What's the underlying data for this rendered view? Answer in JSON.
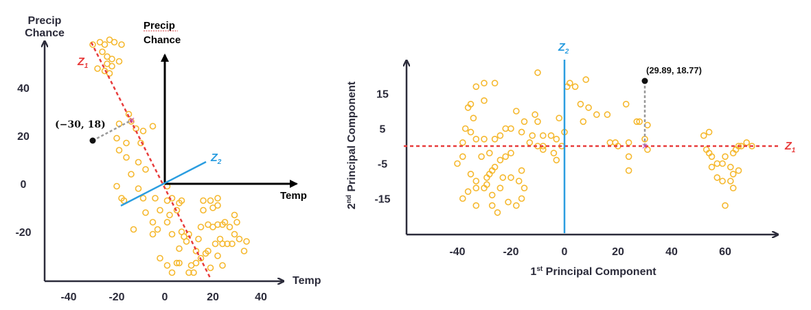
{
  "chart_data": [
    {
      "type": "scatter",
      "xlabel": "Temp",
      "ylabel": "Precip Chance",
      "xlim": [
        -50,
        48
      ],
      "ylim": [
        -40,
        62
      ],
      "xticks": [
        -40,
        -20,
        0,
        20,
        40
      ],
      "yticks": [
        40,
        20,
        0,
        -20
      ],
      "colors": {
        "points": "#f5b82e",
        "z1": "#e83c3c",
        "z2": "#2a9de0",
        "axes": "#2b2b3a"
      },
      "z1_label": "Z1",
      "z2_label": "Z2",
      "centered_axes": {
        "ylabel": "Precip Chance",
        "xlabel": "Temp"
      },
      "highlight_point": {
        "x": -30,
        "y": 18,
        "label": "(−30, 18)"
      },
      "points": [
        [
          -30,
          58
        ],
        [
          -27,
          59
        ],
        [
          -25,
          58
        ],
        [
          -23,
          60
        ],
        [
          -21,
          59
        ],
        [
          -18,
          58
        ],
        [
          -26,
          55
        ],
        [
          -24,
          53
        ],
        [
          -22,
          52
        ],
        [
          -19,
          51
        ],
        [
          -28,
          48
        ],
        [
          -25,
          47
        ],
        [
          -23,
          46
        ],
        [
          -24,
          50
        ],
        [
          -22,
          49
        ],
        [
          -15,
          29
        ],
        [
          -14,
          26
        ],
        [
          -12,
          23
        ],
        [
          -9,
          22
        ],
        [
          -19,
          25
        ],
        [
          -20,
          19
        ],
        [
          -16,
          17
        ],
        [
          -10,
          17
        ],
        [
          -5,
          24
        ],
        [
          -19,
          14
        ],
        [
          -16,
          11
        ],
        [
          -11,
          9
        ],
        [
          -8,
          6
        ],
        [
          -14,
          4
        ],
        [
          -20,
          -1
        ],
        [
          -11,
          -2
        ],
        [
          -18,
          -6
        ],
        [
          -17,
          -7
        ],
        [
          -9,
          -6
        ],
        [
          -13,
          -19
        ],
        [
          -4,
          -6
        ],
        [
          -8,
          -12
        ],
        [
          -2,
          -11
        ],
        [
          -5,
          -16
        ],
        [
          -5,
          -21
        ],
        [
          -3,
          -19
        ],
        [
          1,
          -1
        ],
        [
          3,
          -6
        ],
        [
          1,
          -7
        ],
        [
          7,
          -7
        ],
        [
          6,
          -8
        ],
        [
          5,
          -11
        ],
        [
          2,
          -13
        ],
        [
          1,
          -16
        ],
        [
          3,
          -21
        ],
        [
          7,
          -20
        ],
        [
          10,
          -21
        ],
        [
          9,
          -24
        ],
        [
          8,
          -22
        ],
        [
          6,
          -27
        ],
        [
          14,
          -23
        ],
        [
          13,
          -28
        ],
        [
          11,
          -34
        ],
        [
          17,
          -29
        ],
        [
          18,
          -28
        ],
        [
          22,
          -30
        ],
        [
          19,
          -35
        ],
        [
          24,
          -34
        ],
        [
          16,
          -11
        ],
        [
          20,
          -10
        ],
        [
          22,
          -9
        ],
        [
          16,
          -7
        ],
        [
          19,
          -7
        ],
        [
          22,
          -6
        ],
        [
          15,
          -18
        ],
        [
          18,
          -17
        ],
        [
          22,
          -17
        ],
        [
          20,
          -18
        ],
        [
          24,
          -17
        ],
        [
          25,
          -16
        ],
        [
          27,
          -18
        ],
        [
          29,
          -13
        ],
        [
          30,
          -16
        ],
        [
          29,
          -21
        ],
        [
          31,
          -23
        ],
        [
          23,
          -23
        ],
        [
          24,
          -25
        ],
        [
          21,
          -25
        ],
        [
          26,
          -25
        ],
        [
          28,
          -25
        ],
        [
          33,
          -28
        ],
        [
          34,
          -24
        ],
        [
          -2,
          -31
        ],
        [
          1,
          -34
        ],
        [
          5,
          -33
        ],
        [
          6,
          -33
        ],
        [
          3,
          -37
        ],
        [
          10,
          -37
        ],
        [
          13,
          -33
        ],
        [
          15,
          -31
        ],
        [
          12,
          -37
        ]
      ]
    },
    {
      "type": "scatter",
      "xlabel": "1st Principal Component",
      "ylabel": "2nd Principal Component",
      "xlim": [
        -58,
        80
      ],
      "ylim": [
        -27,
        30
      ],
      "xticks": [
        -40,
        -20,
        0,
        20,
        40,
        60
      ],
      "yticks": [
        15,
        5,
        -5,
        -15
      ],
      "z1_label": "Z1",
      "z2_label": "Z2",
      "highlight_point": {
        "x": 29.89,
        "y": 18.77,
        "label": "(29.89, 18.77)"
      },
      "points": [
        [
          -33,
          17
        ],
        [
          -30,
          18
        ],
        [
          -26,
          18
        ],
        [
          -35,
          12
        ],
        [
          -36,
          11
        ],
        [
          -30,
          13
        ],
        [
          -34,
          8
        ],
        [
          -37,
          5
        ],
        [
          -35,
          4
        ],
        [
          -33,
          2
        ],
        [
          -30,
          2
        ],
        [
          -31,
          -3
        ],
        [
          -28,
          -2
        ],
        [
          -26,
          2
        ],
        [
          -22,
          5
        ],
        [
          -20,
          5
        ],
        [
          -24,
          3
        ],
        [
          -18,
          10
        ],
        [
          -15,
          7
        ],
        [
          -11,
          9
        ],
        [
          -10,
          7
        ],
        [
          -8,
          3
        ],
        [
          -12,
          3
        ],
        [
          -16,
          4
        ],
        [
          -20,
          -2
        ],
        [
          -22,
          -3
        ],
        [
          -24,
          -4
        ],
        [
          -26,
          -6
        ],
        [
          -27,
          -7
        ],
        [
          -28,
          -8
        ],
        [
          -29,
          -9
        ],
        [
          -29,
          -11
        ],
        [
          -30,
          -12
        ],
        [
          -33,
          -12
        ],
        [
          -36,
          -13
        ],
        [
          -40,
          -5
        ],
        [
          -38,
          1
        ],
        [
          -38,
          -3
        ],
        [
          -35,
          -8
        ],
        [
          -33,
          -10
        ],
        [
          -38,
          -15
        ],
        [
          -33,
          -17
        ],
        [
          -27,
          -17
        ],
        [
          -25,
          -19
        ],
        [
          -27,
          -14
        ],
        [
          -24,
          -12
        ],
        [
          -23,
          -9
        ],
        [
          -20,
          -9
        ],
        [
          -17,
          -10
        ],
        [
          -16,
          -15
        ],
        [
          -18,
          -17
        ],
        [
          -21,
          -16
        ],
        [
          -15,
          -12
        ],
        [
          -16,
          -7
        ],
        [
          -13,
          1
        ],
        [
          -10,
          0
        ],
        [
          -8,
          0
        ],
        [
          -8,
          -1
        ],
        [
          -4,
          -2
        ],
        [
          -3,
          -4
        ],
        [
          -1,
          0
        ],
        [
          -3,
          2
        ],
        [
          -5,
          3
        ],
        [
          -2,
          8
        ],
        [
          0,
          4
        ],
        [
          -10,
          21
        ],
        [
          1,
          17
        ],
        [
          2,
          18
        ],
        [
          4,
          17
        ],
        [
          6,
          12
        ],
        [
          8,
          19
        ],
        [
          9,
          11
        ],
        [
          7,
          7
        ],
        [
          12,
          9
        ],
        [
          16,
          9
        ],
        [
          17,
          1
        ],
        [
          19,
          1
        ],
        [
          20,
          0
        ],
        [
          24,
          1
        ],
        [
          23,
          12
        ],
        [
          27,
          7
        ],
        [
          28,
          7
        ],
        [
          24,
          -3
        ],
        [
          24,
          -7
        ],
        [
          30,
          2
        ],
        [
          31,
          6
        ],
        [
          31,
          -1
        ],
        [
          52,
          3
        ],
        [
          54,
          4
        ],
        [
          53,
          -1
        ],
        [
          54,
          -2
        ],
        [
          55,
          -3
        ],
        [
          57,
          -5
        ],
        [
          59,
          -5
        ],
        [
          60,
          -3
        ],
        [
          62,
          -6
        ],
        [
          63,
          -2
        ],
        [
          64,
          -1
        ],
        [
          65,
          0
        ],
        [
          66,
          0
        ],
        [
          68,
          1
        ],
        [
          70,
          0
        ],
        [
          55,
          -6
        ],
        [
          59,
          -10
        ],
        [
          62,
          -10
        ],
        [
          63,
          -12
        ],
        [
          60,
          -17
        ],
        [
          63,
          -8
        ],
        [
          57,
          -9
        ],
        [
          65,
          -7
        ]
      ]
    }
  ]
}
